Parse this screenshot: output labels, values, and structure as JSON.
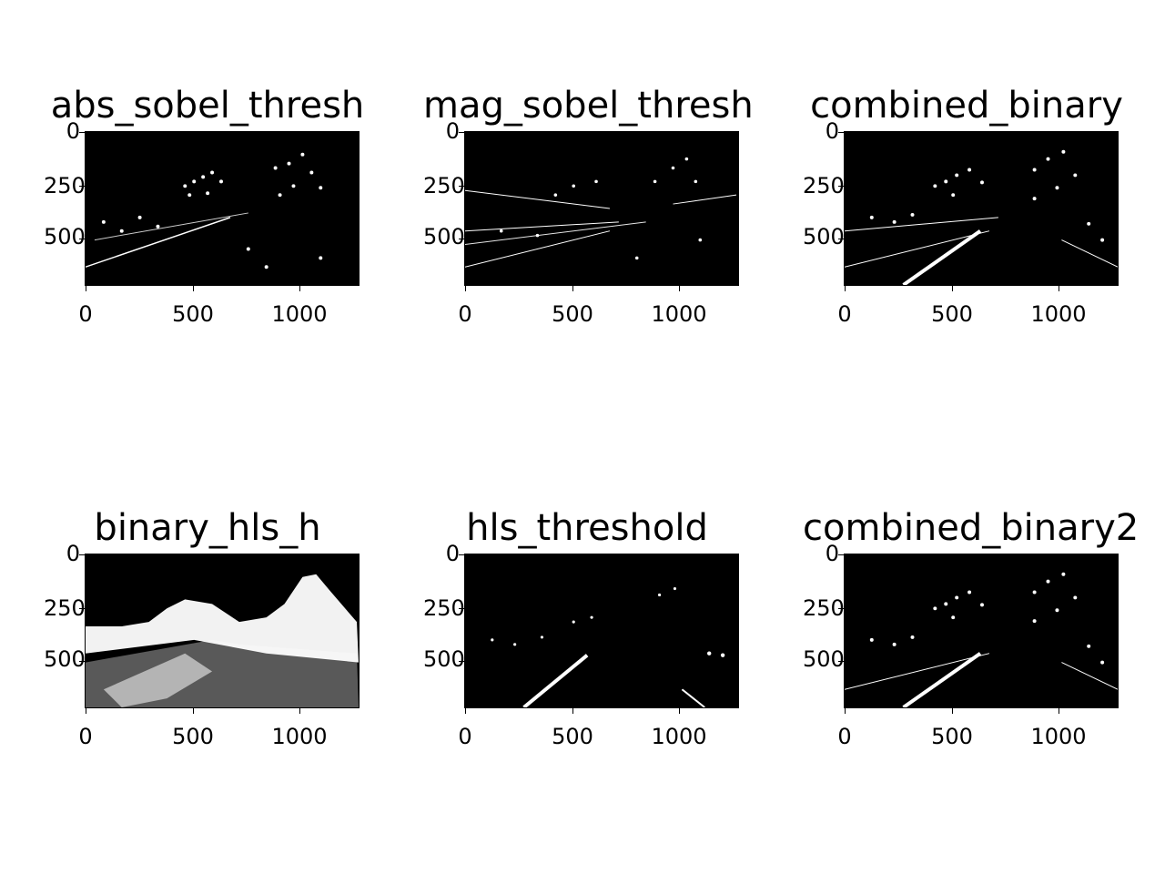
{
  "figure": {
    "x_ticks": [
      "0",
      "500",
      "1000"
    ],
    "y_ticks": [
      "0",
      "250",
      "500"
    ],
    "panels": [
      {
        "title": "abs_sobel_thresh"
      },
      {
        "title": "mag_sobel_thresh"
      },
      {
        "title": "combined_binary"
      },
      {
        "title": "binary_hls_h"
      },
      {
        "title": "hls_threshold"
      },
      {
        "title": "combined_binary2"
      }
    ]
  }
}
